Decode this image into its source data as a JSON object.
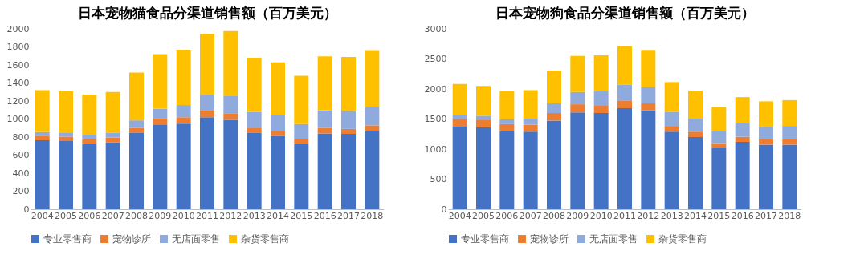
{
  "chart_data": [
    {
      "type": "bar",
      "stacked": true,
      "title": "日本宠物猫食品分渠道销售额（百万美元）",
      "categories": [
        "2004",
        "2005",
        "2006",
        "2007",
        "2008",
        "2009",
        "2010",
        "2011",
        "2012",
        "2013",
        "2014",
        "2015",
        "2016",
        "2017",
        "2018"
      ],
      "ylim": [
        0,
        2000
      ],
      "yticks": [
        0,
        200,
        400,
        600,
        800,
        1000,
        1200,
        1400,
        1600,
        1800,
        2000
      ],
      "grid": false,
      "legend": "bottom",
      "series": [
        {
          "name": "专业零售商",
          "color": "#4472c4",
          "values": [
            765,
            755,
            725,
            740,
            845,
            940,
            950,
            1020,
            990,
            845,
            810,
            725,
            840,
            835,
            865
          ]
        },
        {
          "name": "宠物诊所",
          "color": "#ed7d31",
          "values": [
            50,
            50,
            50,
            55,
            55,
            65,
            70,
            80,
            75,
            60,
            60,
            55,
            60,
            55,
            65
          ]
        },
        {
          "name": "无店面零售",
          "color": "#8faadc",
          "values": [
            40,
            40,
            50,
            55,
            85,
            110,
            135,
            170,
            195,
            175,
            175,
            165,
            195,
            200,
            205
          ]
        },
        {
          "name": "杂货零售商",
          "color": "#ffc000",
          "values": [
            465,
            465,
            445,
            450,
            530,
            605,
            615,
            675,
            715,
            600,
            585,
            535,
            600,
            600,
            630
          ]
        }
      ]
    },
    {
      "type": "bar",
      "stacked": true,
      "title": "日本宠物狗食品分渠道销售额（百万美元）",
      "categories": [
        "2004",
        "2005",
        "2006",
        "2007",
        "2008",
        "2009",
        "2010",
        "2011",
        "2012",
        "2013",
        "2014",
        "2015",
        "2016",
        "2017",
        "2018"
      ],
      "ylim": [
        0,
        3000
      ],
      "yticks": [
        0,
        500,
        1000,
        1500,
        2000,
        2500,
        3000
      ],
      "grid": false,
      "legend": "bottom",
      "series": [
        {
          "name": "专业零售商",
          "color": "#4472c4",
          "values": [
            1375,
            1360,
            1300,
            1290,
            1475,
            1610,
            1600,
            1680,
            1645,
            1290,
            1200,
            1025,
            1120,
            1075,
            1075
          ]
        },
        {
          "name": "宠物诊所",
          "color": "#ed7d31",
          "values": [
            125,
            120,
            115,
            115,
            125,
            135,
            120,
            130,
            115,
            95,
            90,
            75,
            85,
            85,
            85
          ]
        },
        {
          "name": "无店面零售",
          "color": "#8faadc",
          "values": [
            60,
            75,
            80,
            100,
            160,
            205,
            240,
            265,
            270,
            230,
            215,
            200,
            225,
            210,
            225
          ]
        },
        {
          "name": "杂货零售商",
          "color": "#ffc000",
          "values": [
            525,
            495,
            470,
            475,
            545,
            600,
            600,
            635,
            620,
            500,
            465,
            400,
            435,
            425,
            430
          ]
        }
      ]
    }
  ]
}
